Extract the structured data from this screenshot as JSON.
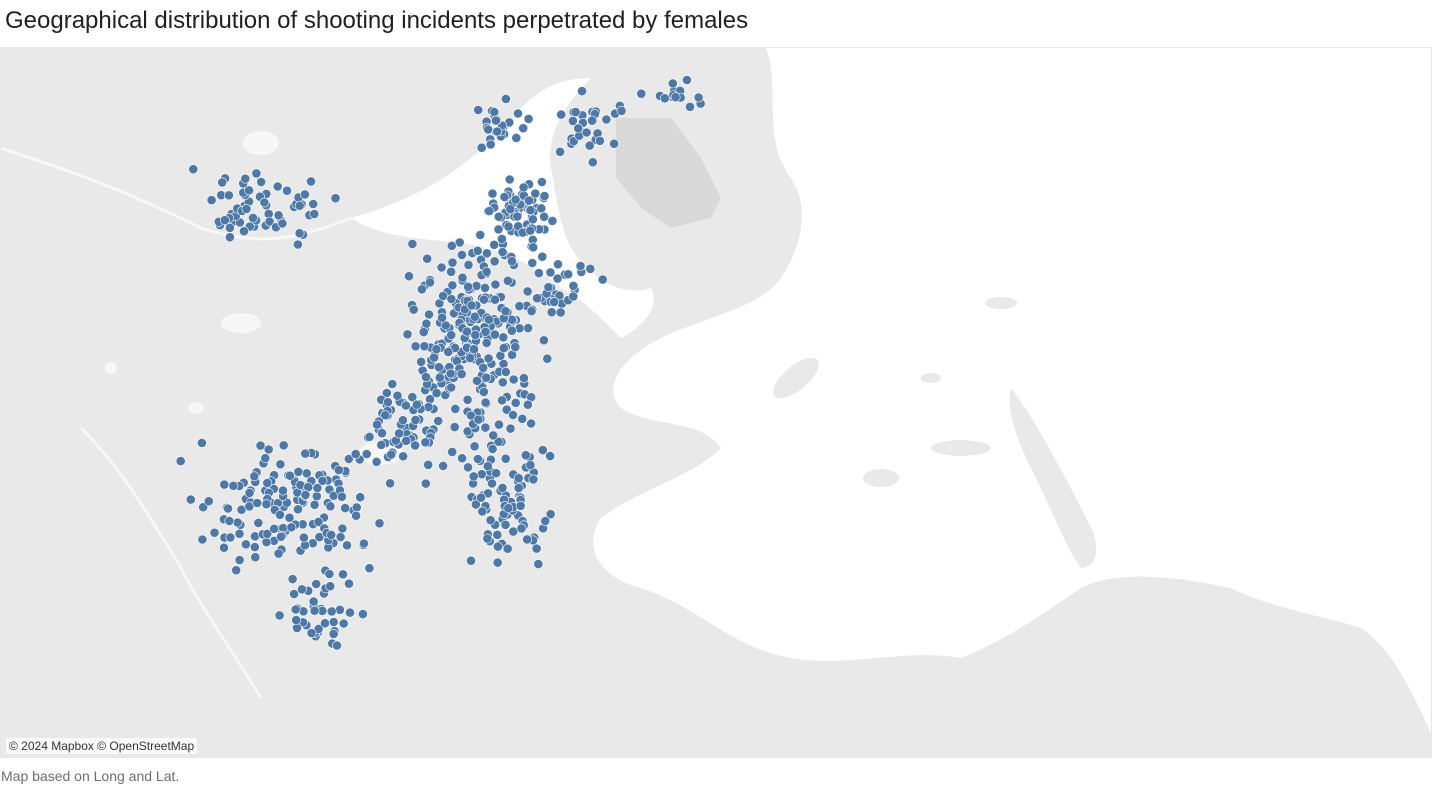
{
  "title": "Geographical distribution of shooting incidents perpetrated by females",
  "map": {
    "attribution": "© 2024 Mapbox © OpenStreetMap",
    "caption": "Map based on Long and Lat.",
    "land_color": "#e9e9e9",
    "water_color": "#ffffff",
    "marker_color": "#4e79a7"
  }
}
